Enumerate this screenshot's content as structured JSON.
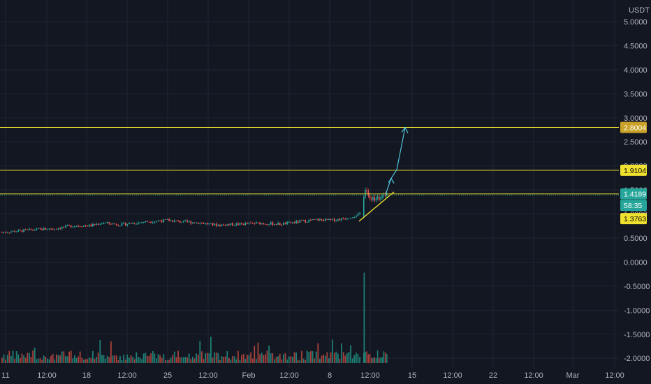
{
  "chart_data": {
    "type": "candlestick",
    "currency": "USDT",
    "colors": {
      "background": "#131722",
      "grid": "#1f2433",
      "up": "#26a69a",
      "down": "#ef5350",
      "volume_up": "#1f7f74",
      "volume_down": "#a8413c",
      "level": "#f0e130",
      "projection": "#4fc3d9"
    },
    "y_axis": {
      "ylim": [
        -2.2,
        5.45
      ],
      "ticks": [
        "5.0000",
        "4.5000",
        "4.0000",
        "3.5000",
        "3.0000",
        "2.5000",
        "2.0000",
        "1.5000",
        "1.0000",
        "0.5000",
        "0.0000",
        "-0.5000",
        "-1.0000",
        "-1.5000",
        "-2.0000"
      ],
      "tick_values": [
        5.0,
        4.5,
        4.0,
        3.5,
        3.0,
        2.5,
        2.0,
        1.5,
        1.0,
        0.5,
        0.0,
        -0.5,
        -1.0,
        -1.5,
        -2.0
      ]
    },
    "x_axis": {
      "ticks": [
        "11",
        "12:00",
        "18",
        "12:00",
        "25",
        "12:00",
        "Feb",
        "12:00",
        "8",
        "12:00",
        "15",
        "12:00",
        "22",
        "12:00",
        "Mar",
        "12:00"
      ]
    },
    "horizontal_levels": [
      {
        "value": 2.8004,
        "label": "2.8004",
        "style": "solid",
        "tag_color": "#c9a227"
      },
      {
        "value": 1.9104,
        "label": "1.9104",
        "style": "solid",
        "tag_color": "#f0e130"
      },
      {
        "value": 1.4189,
        "label": "1.4189",
        "style": "dotted",
        "tag_color": "#26a69a"
      }
    ],
    "price_tags": [
      {
        "label": "58:35",
        "value": 1.18,
        "color": "#26a69a"
      },
      {
        "label": "1.3763",
        "value": 0.905,
        "color": "#f0e130"
      }
    ],
    "price_trend": [
      {
        "t": 0.0,
        "p": 0.62
      },
      {
        "t": 0.05,
        "p": 0.65
      },
      {
        "t": 0.1,
        "p": 0.68
      },
      {
        "t": 0.15,
        "p": 0.7
      },
      {
        "t": 0.2,
        "p": 0.76
      },
      {
        "t": 0.25,
        "p": 0.76
      },
      {
        "t": 0.28,
        "p": 0.82
      },
      {
        "t": 0.33,
        "p": 0.78
      },
      {
        "t": 0.4,
        "p": 0.84
      },
      {
        "t": 0.46,
        "p": 0.87
      },
      {
        "t": 0.5,
        "p": 0.84
      },
      {
        "t": 0.55,
        "p": 0.82
      },
      {
        "t": 0.6,
        "p": 0.77
      },
      {
        "t": 0.66,
        "p": 0.79
      },
      {
        "t": 0.72,
        "p": 0.81
      },
      {
        "t": 0.78,
        "p": 0.79
      },
      {
        "t": 0.84,
        "p": 0.85
      },
      {
        "t": 0.88,
        "p": 0.88
      },
      {
        "t": 0.92,
        "p": 0.87
      },
      {
        "t": 0.96,
        "p": 0.91
      },
      {
        "t": 1.0,
        "p": 1.0
      }
    ],
    "breakout": [
      1.35,
      1.5,
      1.47,
      1.38,
      1.32,
      1.3,
      1.35,
      1.28,
      1.33,
      1.36,
      1.3,
      1.34,
      1.37,
      1.4,
      1.38,
      1.42
    ],
    "volume_spike_value": -0.22,
    "annotations": {
      "trendline": [
        {
          "x_frac": 0.0,
          "p": 0.85
        },
        {
          "x_frac": 1.0,
          "p": 1.46
        }
      ],
      "arrow_points": [
        {
          "p": 1.41
        },
        {
          "p": 1.74
        },
        {
          "p": 1.92
        },
        {
          "p": 2.8
        }
      ]
    }
  }
}
